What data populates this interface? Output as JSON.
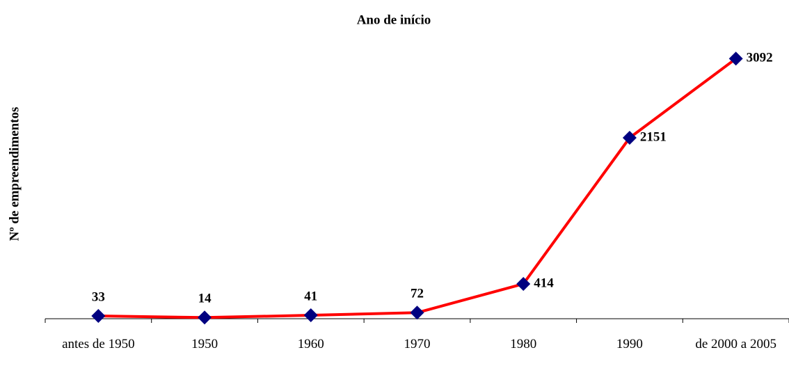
{
  "chart_data": {
    "type": "line",
    "title": "Ano de início",
    "y_label": "Nº de empreendimentos",
    "categories": [
      "antes de 1950",
      "1950",
      "1960",
      "1970",
      "1980",
      "1990",
      "de 2000 a 2005"
    ],
    "series": [
      {
        "name": "Ano de início",
        "color": "#ff0000",
        "marker_color": "#000080",
        "values": [
          33,
          14,
          41,
          72,
          414,
          2151,
          3092
        ]
      }
    ],
    "ylim": [
      0,
      3500
    ]
  }
}
